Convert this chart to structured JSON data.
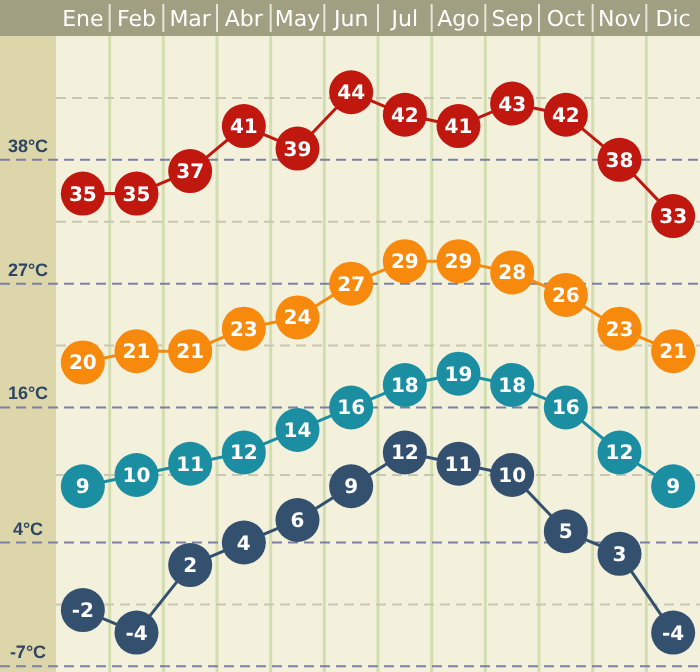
{
  "chart_data": {
    "type": "line",
    "categories": [
      "Ene",
      "Feb",
      "Mar",
      "Abr",
      "May",
      "Jun",
      "Jul",
      "Ago",
      "Sep",
      "Oct",
      "Nov",
      "Dic"
    ],
    "series": [
      {
        "color": "#c0170f",
        "values": [
          35,
          35,
          37,
          41,
          39,
          44,
          42,
          41,
          43,
          42,
          38,
          33
        ]
      },
      {
        "color": "#f7890c",
        "values": [
          20,
          21,
          21,
          23,
          24,
          27,
          29,
          29,
          28,
          26,
          23,
          21
        ]
      },
      {
        "color": "#1b8ea1",
        "values": [
          9,
          10,
          11,
          12,
          14,
          16,
          18,
          19,
          18,
          16,
          12,
          9
        ]
      },
      {
        "color": "#34506f",
        "values": [
          -2,
          -4,
          2,
          4,
          6,
          9,
          12,
          11,
          10,
          5,
          3,
          -4
        ]
      }
    ],
    "ylim": [
      -7.5,
      49
    ],
    "yticks": [
      {
        "value": -7,
        "label": "-7°C"
      },
      {
        "value": -1.5,
        "label": null
      },
      {
        "value": 4,
        "label": "4°C"
      },
      {
        "value": 10,
        "label": null
      },
      {
        "value": 16,
        "label": "16°C"
      },
      {
        "value": 21.5,
        "label": null
      },
      {
        "value": 27,
        "label": "27°C"
      },
      {
        "value": 32.5,
        "label": null
      },
      {
        "value": 38,
        "label": "38°C"
      },
      {
        "value": 43.5,
        "label": null
      }
    ],
    "grid": "y",
    "data_labels": true,
    "marker": "circle",
    "line_style": "solid"
  }
}
